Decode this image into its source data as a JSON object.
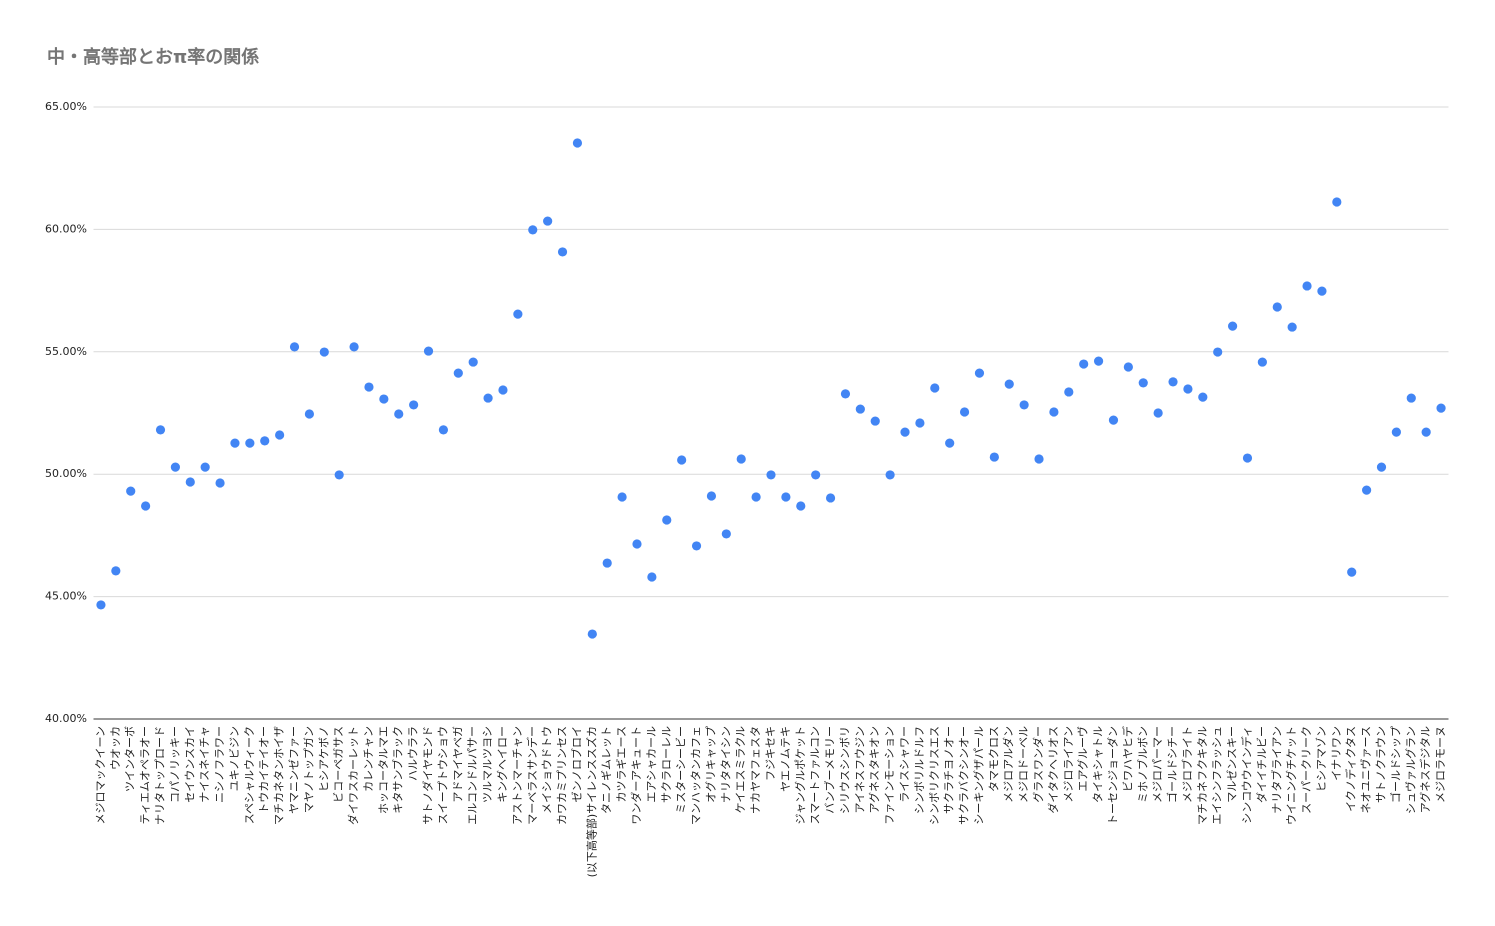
{
  "chart_data": {
    "type": "scatter",
    "title": "中・高等部とおπ率の関係",
    "categories": [
      "メジロマックイーン",
      "ウオッカ",
      "ツインターボ",
      "ティエムオペラオー",
      "ナリタトップロード",
      "コパノリッキー",
      "セイウンスカイ",
      "ナイスネイチャ",
      "ニシノフラワー",
      "ユキノビジン",
      "スペシャルウィーク",
      "トウカイテイオー",
      "マチカネタンホイザ",
      "ヤマニンゼファー",
      "マヤノトップガン",
      "ヒシアケボノ",
      "ビコーペガサス",
      "ダイワスカーレット",
      "カレンチャン",
      "ホッコータルマエ",
      "キタサンブラック",
      "ハルウララ",
      "サトノダイヤモンド",
      "スイープトウショウ",
      "アドマイヤベガ",
      "エルコンドルパサー",
      "ツルマルツヨシ",
      "キングヘイロー",
      "アストンマーチャン",
      "マーベラスサンデー",
      "メイショウドトウ",
      "カワカミプリンセス",
      "ゼンノロブロイ",
      "(以下高等部)サイレンススズカ",
      "タニノギムレット",
      "カツラギエース",
      "ワンダーアキュート",
      "エアシャカール",
      "サクラローレル",
      "ミスターシービー",
      "マンハッタンカフェ",
      "オグリキャップ",
      "ナリタタイシン",
      "ケイエスミラクル",
      "ナカヤマフェスタ",
      "フジキセキ",
      "ヤエノムテキ",
      "ジャングルポケット",
      "スマートファルコン",
      "バンブーメモリー",
      "シリウスシンボリ",
      "アイネスフウジン",
      "アグネスタキオン",
      "ファインモーション",
      "ライスシャワー",
      "シンボリルドルフ",
      "シンボリクリスエス",
      "サクラチヨノオー",
      "サクラバクシンオー",
      "シーキングザパール",
      "タマモクロス",
      "メジロアルダン",
      "メジロドーベル",
      "グラスワンダー",
      "ダイタクヘリオス",
      "メジロライアン",
      "エアグルーヴ",
      "タイキシャトル",
      "トーセンジョーダン",
      "ビワハヤヒデ",
      "ミホノブルボン",
      "メジロパーマー",
      "ゴールドシチー",
      "メジロブライト",
      "マチカネフクキタル",
      "エイシンフラッシュ",
      "マルゼンスキー",
      "シンコウウインディ",
      "ダイイチルビー",
      "ナリタブライアン",
      "ウイニングチケット",
      "スーパークリーク",
      "ヒシアマゾン",
      "イナリワン",
      "イクノディクタス",
      "ネオユニヴァース",
      "サトノクラウン",
      "ゴールドシップ",
      "シュヴァルグラン",
      "アグネスデジタル",
      "メジロラモーヌ"
    ],
    "values": [
      44.66,
      46.05,
      49.31,
      48.7,
      51.81,
      50.29,
      49.68,
      50.29,
      49.64,
      51.27,
      51.27,
      51.36,
      51.6,
      55.2,
      52.46,
      54.99,
      49.97,
      55.2,
      53.56,
      53.07,
      52.46,
      52.83,
      55.03,
      51.81,
      54.13,
      54.58,
      53.11,
      53.44,
      56.54,
      59.98,
      60.34,
      59.08,
      63.53,
      43.47,
      46.37,
      49.07,
      47.15,
      45.8,
      48.13,
      50.58,
      47.07,
      49.11,
      47.56,
      50.62,
      49.07,
      49.97,
      49.07,
      48.7,
      49.97,
      49.03,
      53.28,
      52.66,
      52.17,
      49.97,
      51.72,
      52.09,
      53.52,
      51.27,
      52.54,
      54.13,
      50.7,
      53.68,
      52.83,
      50.62,
      52.54,
      53.36,
      54.5,
      54.62,
      52.21,
      54.38,
      53.73,
      52.5,
      53.77,
      53.48,
      53.15,
      54.99,
      56.05,
      50.66,
      54.58,
      56.83,
      56.01,
      57.69,
      57.48,
      61.12,
      46.0,
      49.35,
      50.29,
      51.72,
      53.11,
      51.72,
      52.7
    ],
    "color": "#4285f4",
    "ylim": [
      40,
      65
    ],
    "yticks": [
      {
        "value": 40,
        "label": "40.00%"
      },
      {
        "value": 45,
        "label": "45.00%"
      },
      {
        "value": 50,
        "label": "50.00%"
      },
      {
        "value": 55,
        "label": "55.00%"
      },
      {
        "value": 60,
        "label": "60.00%"
      },
      {
        "value": 65,
        "label": "65.00%"
      }
    ],
    "grid": true
  }
}
